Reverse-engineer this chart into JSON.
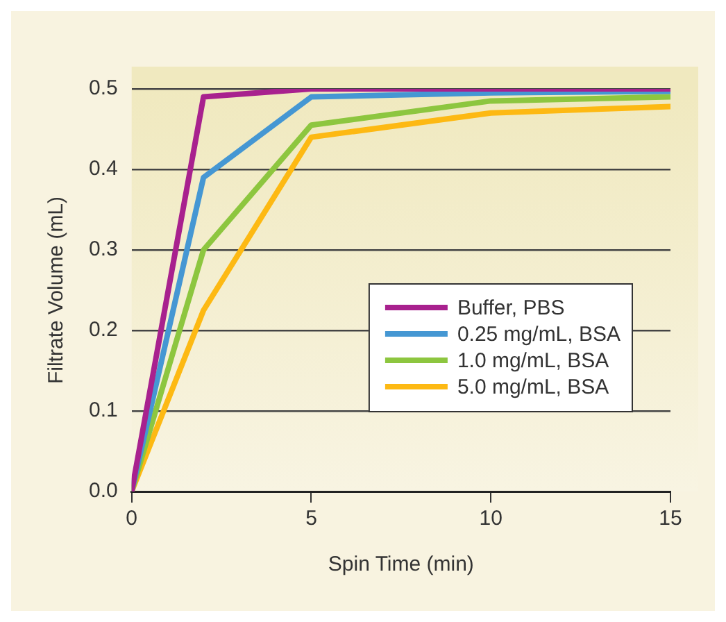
{
  "chart_data": {
    "type": "line",
    "xlabel": "Spin Time (min)",
    "ylabel": "Filtrate Volume (mL)",
    "x": [
      0,
      2,
      5,
      10,
      15
    ],
    "series": [
      {
        "name": "Buffer, PBS",
        "color": "#a8218e",
        "values": [
          0,
          0.49,
          0.5,
          0.5,
          0.5
        ]
      },
      {
        "name": "0.25 mg/mL, BSA",
        "color": "#4597d3",
        "values": [
          0,
          0.39,
          0.49,
          0.495,
          0.497
        ]
      },
      {
        "name": "1.0 mg/mL, BSA",
        "color": "#8dc63f",
        "values": [
          0,
          0.3,
          0.455,
          0.485,
          0.49
        ]
      },
      {
        "name": "5.0 mg/mL, BSA",
        "color": "#fdb913",
        "values": [
          0,
          0.225,
          0.44,
          0.47,
          0.478
        ]
      }
    ],
    "xlim": [
      0,
      15
    ],
    "xticks": [
      0,
      5,
      10,
      15
    ],
    "ylim": [
      0,
      0.5
    ],
    "yticks": [
      {
        "value": 0,
        "label": "0.0"
      },
      0.1,
      0.2,
      0.3,
      0.4,
      0.5
    ],
    "grid": "y",
    "legend": "center right",
    "marker": "none",
    "line_style": "solid"
  }
}
